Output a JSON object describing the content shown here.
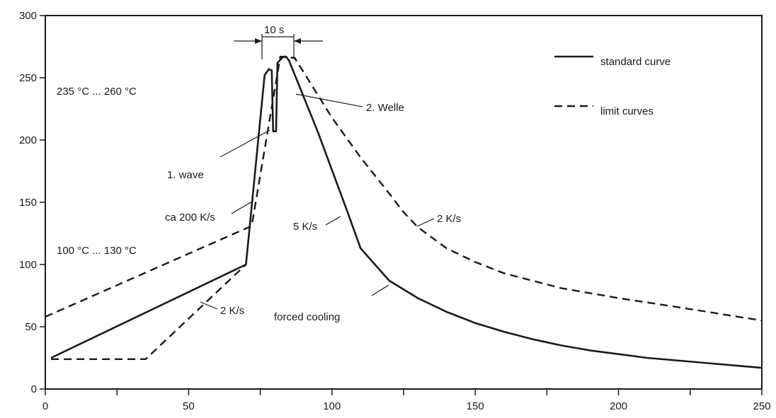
{
  "chart_data": {
    "type": "line",
    "title": "",
    "xlabel": "",
    "ylabel": "",
    "xlim": [
      0,
      250
    ],
    "ylim": [
      0,
      300
    ],
    "x_ticks": [
      "0",
      "50",
      "100",
      "150",
      "200",
      "250"
    ],
    "y_ticks": [
      "0",
      "50",
      "100",
      "150",
      "200",
      "250",
      "300"
    ],
    "grid": false,
    "legend_position": "top-right",
    "legend": [
      {
        "label": "standard curve",
        "style": "solid"
      },
      {
        "label": "limit curves",
        "style": "dashed"
      }
    ],
    "series": [
      {
        "style": "solid",
        "color": "#1a1a1a",
        "x": [
          2,
          70,
          76.5,
          78,
          79,
          79.5,
          80.5,
          81,
          83,
          84,
          85,
          95,
          105,
          110,
          120,
          130,
          140,
          150,
          160,
          170,
          180,
          190,
          200,
          210,
          220,
          230,
          240,
          250
        ],
        "y": [
          25,
          100,
          252,
          257,
          256,
          207,
          207,
          262,
          267,
          267,
          264,
          207,
          145,
          113,
          87,
          73,
          62,
          53,
          46,
          40,
          35,
          31,
          28,
          25,
          23,
          21,
          19,
          17
        ]
      },
      {
        "style": "dashed",
        "color": "#1a1a1a",
        "x": [
          0,
          72,
          82,
          87,
          100,
          110,
          120,
          125,
          130,
          140,
          150,
          160,
          180,
          200,
          220,
          250
        ],
        "y": [
          58,
          131,
          267,
          266,
          218,
          186,
          157,
          142,
          130,
          113,
          102,
          93,
          81,
          73,
          66,
          55
        ]
      },
      {
        "style": "dashed",
        "color": "#1a1a1a",
        "x": [
          2,
          35,
          70
        ],
        "y": [
          24,
          24,
          100
        ]
      }
    ],
    "annotations": [
      {
        "text": "10 s"
      },
      {
        "text": "235 °C ... 260 °C"
      },
      {
        "text": "2. Welle"
      },
      {
        "text": "1. wave"
      },
      {
        "text": "ca 200 K/s"
      },
      {
        "text": "5 K/s"
      },
      {
        "text": "2 K/s"
      },
      {
        "text": "100 °C ... 130 °C"
      },
      {
        "text": "2 K/s"
      },
      {
        "text": "forced cooling"
      }
    ]
  }
}
